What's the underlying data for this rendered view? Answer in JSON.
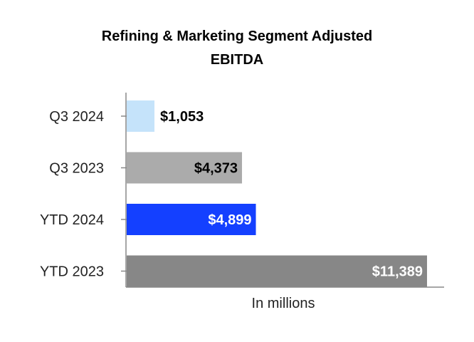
{
  "chart_data": {
    "type": "bar",
    "orientation": "horizontal",
    "title_lines": [
      "Refining & Marketing Segment Adjusted",
      "EBITDA"
    ],
    "categories": [
      "Q3 2024",
      "Q3 2023",
      "YTD 2024",
      "YTD 2023"
    ],
    "values": [
      1053,
      4373,
      4899,
      11389
    ],
    "data_labels": [
      "$1,053",
      "$4,373",
      "$4,899",
      "$11,389"
    ],
    "bar_colors": [
      "#C5E3FA",
      "#ABABAB",
      "#1440FF",
      "#878787"
    ],
    "label_colors": [
      "#000000",
      "#000000",
      "#FFFFFF",
      "#FFFFFF"
    ],
    "label_placement": [
      "outside",
      "inside",
      "inside",
      "inside"
    ],
    "xlabel": "In millions",
    "ylabel": "",
    "xlim": [
      0,
      12000
    ],
    "grid": false,
    "legend": "none"
  }
}
